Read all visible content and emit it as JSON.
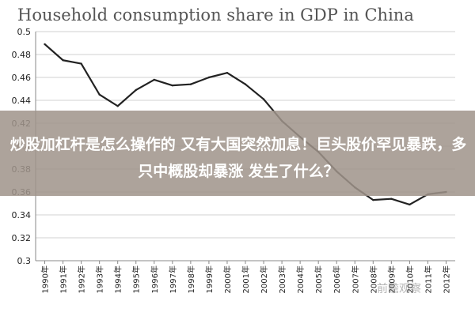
{
  "chart_data": {
    "type": "line",
    "title": "Household consumption share in GDP in China",
    "xlabel": "",
    "ylabel": "",
    "categories": [
      "1990年",
      "1991年",
      "1992年",
      "1993年",
      "1994年",
      "1995年",
      "1996年",
      "1997年",
      "1998年",
      "1999年",
      "2000年",
      "2001年",
      "2002年",
      "2003年",
      "2004年",
      "2005年",
      "2006年",
      "2007年",
      "2008年",
      "2009年",
      "2010年",
      "2011年",
      "2012年"
    ],
    "values": [
      0.489,
      0.475,
      0.472,
      0.445,
      0.435,
      0.449,
      0.458,
      0.453,
      0.454,
      0.46,
      0.464,
      0.454,
      0.441,
      0.422,
      0.408,
      0.395,
      0.378,
      0.364,
      0.353,
      0.354,
      0.349,
      0.358,
      0.36
    ],
    "ylim": [
      0.3,
      0.5
    ],
    "yticks": [
      "0.3",
      "0.32",
      "0.34",
      "0.36",
      "0.38",
      "0.4",
      "0.42",
      "0.44",
      "0.46",
      "0.48",
      "0.5"
    ],
    "grid": true,
    "series_color": "#222222",
    "grid_color": "#d0d0d0"
  },
  "overlay": {
    "text": "炒股加杠杆是怎么操作的 又有大国突然加息！巨头股价罕见暴跌，多只中概股却暴涨 发生了什么？",
    "background": "#a0948a"
  },
  "watermark": {
    "text": "前瞻观察"
  }
}
